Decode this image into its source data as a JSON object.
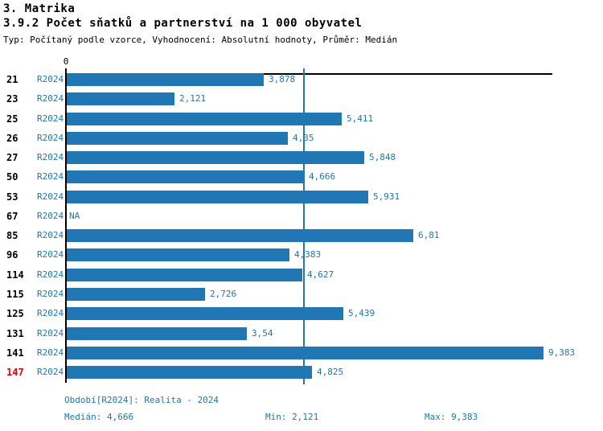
{
  "page": {
    "title_line1": "3. Matrika",
    "title_line2": "3.9.2 Počet sňatků a partnerství na 1 000 obyvatel",
    "subtitle": "Typ: Počítaný podle vzorce, Vyhodnocení: Absolutní hodnoty, Průměr: Medián"
  },
  "chart_data": {
    "type": "bar",
    "orientation": "horizontal",
    "title": "3.9.2 Počet sňatků a partnerství na 1 000 obyvatel",
    "series_label": "R2024",
    "categories": [
      "21",
      "23",
      "25",
      "26",
      "27",
      "50",
      "53",
      "67",
      "85",
      "96",
      "114",
      "115",
      "125",
      "131",
      "141",
      "147"
    ],
    "values": [
      3.878,
      2.121,
      5.411,
      4.35,
      5.848,
      4.666,
      5.931,
      null,
      6.81,
      4.383,
      4.627,
      2.726,
      5.439,
      3.54,
      9.383,
      4.825
    ],
    "value_labels": [
      "3,878",
      "2,121",
      "5,411",
      "4,35",
      "5,848",
      "4,666",
      "5,931",
      "NA",
      "6,81",
      "4,383",
      "4,627",
      "2,726",
      "5,439",
      "3,54",
      "9,383",
      "4,825"
    ],
    "highlighted_category": "147",
    "axis": {
      "zero_label": "0",
      "xlim": [
        0,
        9.57
      ],
      "median_line_value": 4.666
    },
    "stats": {
      "median": 4.666,
      "min": 2.121,
      "max": 9.383
    },
    "colors": {
      "bar": "#2177b4",
      "text_blue": "#2177b4",
      "highlight_red": "#e10000",
      "axis_black": "#000000"
    },
    "legend_position": "none",
    "grid": false
  },
  "footer": {
    "period": "Období[R2024]: Realita - 2024",
    "median": "Medián: 4,666",
    "min": "Min: 2,121",
    "max": "Max: 9,383"
  }
}
